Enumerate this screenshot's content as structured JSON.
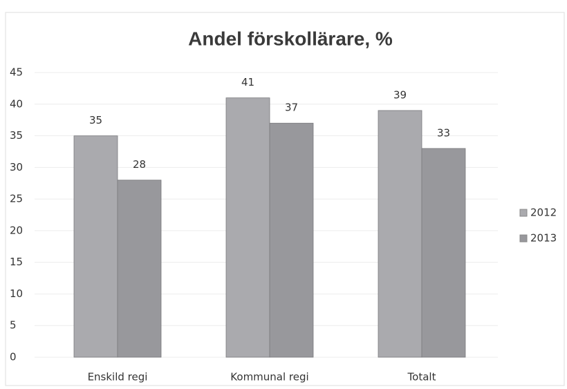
{
  "chart_data": {
    "type": "bar",
    "title": "Andel förskollärare, %",
    "categories": [
      "Enskild regi",
      "Kommunal regi",
      "Totalt"
    ],
    "series": [
      {
        "name": "2012",
        "color": "#aaaaae",
        "values": [
          35,
          41,
          39
        ]
      },
      {
        "name": "2013",
        "color": "#98989c",
        "values": [
          28,
          37,
          33
        ]
      }
    ],
    "ylim": [
      0,
      45
    ],
    "yticks": [
      0,
      5,
      10,
      15,
      20,
      25,
      30,
      35,
      40,
      45
    ],
    "grid": true,
    "legend": "right"
  }
}
